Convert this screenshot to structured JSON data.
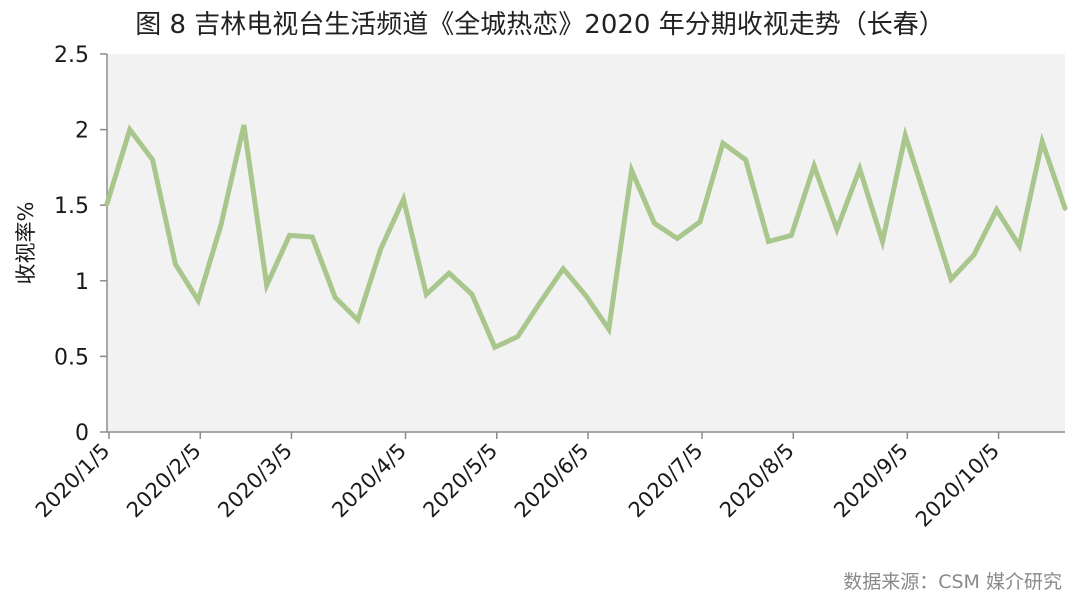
{
  "title": "图 8  吉林电视台生活频道《全城热恋》2020 年分期收视走势（长春）",
  "source": "数据来源：CSM 媒介研究",
  "chart_data": {
    "type": "line",
    "title": "图 8  吉林电视台生活频道《全城热恋》2020 年分期收视走势（长春）",
    "xlabel": "",
    "ylabel": "收视率%",
    "ylim": [
      0,
      2.5
    ],
    "yticks": [
      "0",
      "0.5",
      "1",
      "1.5",
      "2",
      "2.5"
    ],
    "grid": false,
    "legend": "none",
    "background": "#f2f2f2",
    "line_color": "#a9c68c",
    "x_tick_labels": [
      {
        "index": 0,
        "label": "2020/1/5"
      },
      {
        "index": 4,
        "label": "2020/2/5"
      },
      {
        "index": 8,
        "label": "2020/3/5"
      },
      {
        "index": 13,
        "label": "2020/4/5"
      },
      {
        "index": 17,
        "label": "2020/5/5"
      },
      {
        "index": 21,
        "label": "2020/6/5"
      },
      {
        "index": 26,
        "label": "2020/7/5"
      },
      {
        "index": 30,
        "label": "2020/8/5"
      },
      {
        "index": 35,
        "label": "2020/9/5"
      },
      {
        "index": 39,
        "label": "2020/10/5"
      }
    ],
    "series": [
      {
        "values": [
          1.51,
          2.0,
          1.8,
          1.11,
          0.87,
          1.37,
          2.03,
          0.97,
          1.3,
          1.29,
          0.89,
          0.74,
          1.21,
          1.54,
          0.91,
          1.05,
          0.91,
          0.56,
          0.63,
          0.86,
          1.08,
          0.9,
          0.68,
          1.73,
          1.38,
          1.28,
          1.39,
          1.91,
          1.8,
          1.26,
          1.3,
          1.76,
          1.34,
          1.74,
          1.26,
          1.96,
          1.49,
          1.01,
          1.17,
          1.47,
          1.23,
          1.92,
          1.48
        ]
      }
    ]
  }
}
